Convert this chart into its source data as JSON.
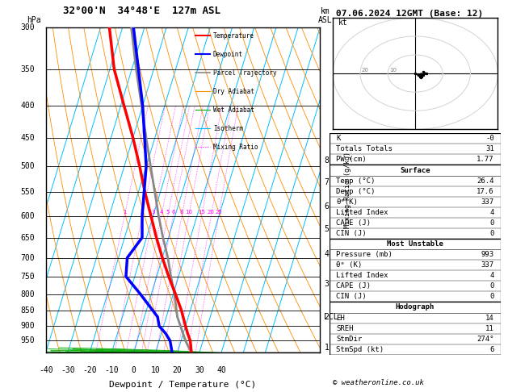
{
  "title_left": "32°00'N  34°48'E  127m ASL",
  "title_date": "07.06.2024 12GMT (Base: 12)",
  "xlabel": "Dewpoint / Temperature (°C)",
  "pressure_ticks": [
    300,
    350,
    400,
    450,
    500,
    550,
    600,
    650,
    700,
    750,
    800,
    850,
    900,
    950
  ],
  "km_pressures": [
    975,
    870,
    770,
    690,
    630,
    580,
    530,
    490
  ],
  "km_vals": [
    1,
    2,
    3,
    4,
    5,
    6,
    7,
    8
  ],
  "lcl_pressure": 870,
  "temp_profile": {
    "pressure": [
      993,
      950,
      925,
      900,
      850,
      800,
      750,
      700,
      650,
      600,
      550,
      500,
      450,
      400,
      350,
      300
    ],
    "temp": [
      26.4,
      24.2,
      22.0,
      20.0,
      16.0,
      11.0,
      5.5,
      0.0,
      -5.5,
      -11.0,
      -17.0,
      -23.0,
      -30.0,
      -38.5,
      -48.0,
      -56.0
    ],
    "color": "#ff0000",
    "linewidth": 2.5
  },
  "dewp_profile": {
    "pressure": [
      993,
      950,
      925,
      900,
      870,
      800,
      750,
      700,
      650,
      600,
      500,
      400,
      300
    ],
    "dewp": [
      17.6,
      15.0,
      12.0,
      8.0,
      6.0,
      -5.0,
      -14.0,
      -16.0,
      -12.0,
      -15.0,
      -20.0,
      -30.0,
      -45.0
    ],
    "color": "#0000ff",
    "linewidth": 2.5
  },
  "parcel_profile": {
    "pressure": [
      993,
      950,
      870,
      800,
      750,
      700,
      650,
      600,
      550,
      500,
      450,
      400,
      350,
      300
    ],
    "temp": [
      26.4,
      22.0,
      15.0,
      10.5,
      6.5,
      2.5,
      -2.5,
      -7.5,
      -12.5,
      -18.0,
      -24.0,
      -30.5,
      -38.0,
      -46.0
    ],
    "color": "#888888",
    "linewidth": 2.0
  },
  "background_color": "#ffffff",
  "isotherm_color": "#00bfff",
  "dry_adiabat_color": "#ff8c00",
  "wet_adiabat_color": "#00aa00",
  "mixing_ratio_color": "#ff00ff",
  "info_panel": {
    "K": "-0",
    "Totals_Totals": "31",
    "PW_cm": "1.77",
    "Surface_Temp": "26.4",
    "Surface_Dewp": "17.6",
    "Surface_Thetae": "337",
    "Surface_LI": "4",
    "Surface_CAPE": "0",
    "Surface_CIN": "0",
    "MU_Pressure": "993",
    "MU_Thetae": "337",
    "MU_LI": "4",
    "MU_CAPE": "0",
    "MU_CIN": "0",
    "Hodo_EH": "14",
    "Hodo_SREH": "11",
    "Hodo_StmDir": "274",
    "Hodo_StmSpd": "6"
  },
  "font_size_title": 9,
  "font_size_labels": 8,
  "font_size_ticks": 7,
  "font_family": "monospace"
}
